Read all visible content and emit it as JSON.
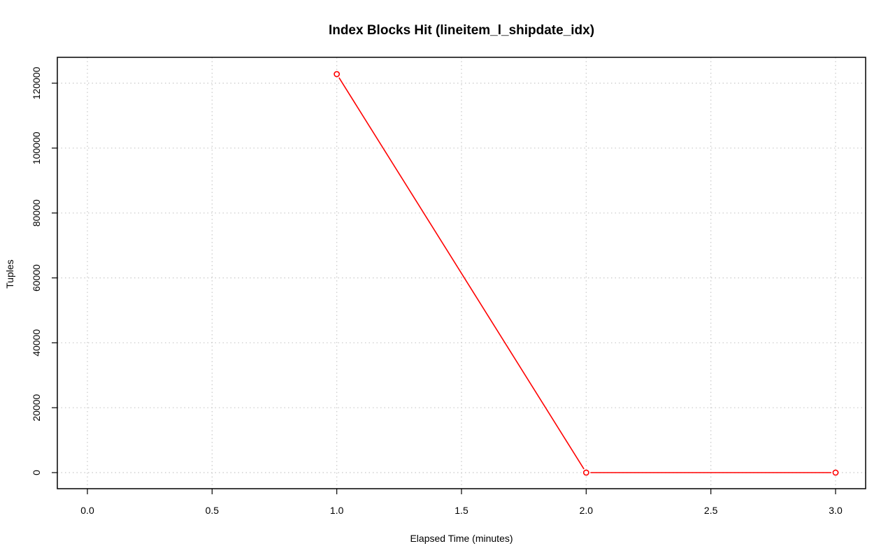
{
  "chart_data": {
    "type": "line",
    "title": "Index Blocks Hit (lineitem_l_shipdate_idx)",
    "xlabel": "Elapsed Time (minutes)",
    "ylabel": "Tuples",
    "x": [
      1.0,
      2.0,
      3.0
    ],
    "series": [
      {
        "values": [
          122800,
          0,
          0
        ],
        "color": "#ff0000",
        "marker": "open-circle"
      }
    ],
    "xlim": [
      0.0,
      3.0
    ],
    "ylim": [
      0,
      120000
    ],
    "xticks": [
      0.0,
      0.5,
      1.0,
      1.5,
      2.0,
      2.5,
      3.0
    ],
    "xtick_labels": [
      "0.0",
      "0.5",
      "1.0",
      "1.5",
      "2.0",
      "2.5",
      "3.0"
    ],
    "yticks": [
      0,
      20000,
      40000,
      60000,
      80000,
      100000,
      120000
    ],
    "ytick_labels": [
      "0",
      "20000",
      "40000",
      "60000",
      "80000",
      "100000",
      "120000"
    ],
    "grid": true,
    "grid_style": "dotted",
    "grid_color": "#c8c8c8",
    "axis_color": "#000000",
    "legend": "none"
  }
}
